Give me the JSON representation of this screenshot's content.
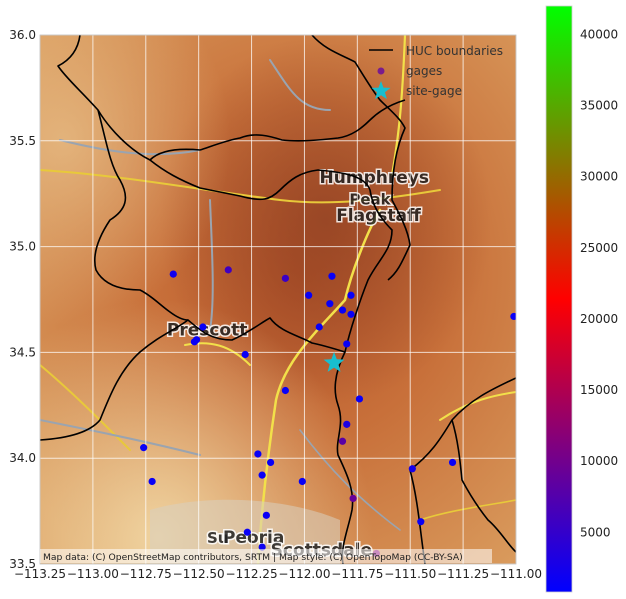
{
  "map": {
    "xlim": [
      -113.25,
      -111.0
    ],
    "ylim": [
      33.5,
      36.0
    ],
    "x_ticks": [
      "−113.25",
      "−113.00",
      "−112.75",
      "−112.50",
      "−112.25",
      "−112.00",
      "−111.75",
      "−111.50",
      "−111.25",
      "−111.00"
    ],
    "x_tick_values": [
      -113.25,
      -113.0,
      -112.75,
      -112.5,
      -112.25,
      -112.0,
      -111.75,
      -111.5,
      -111.25,
      -111.0
    ],
    "y_ticks": [
      "33.5",
      "34.0",
      "34.5",
      "35.0",
      "35.5",
      "36.0"
    ],
    "y_tick_values": [
      33.5,
      34.0,
      34.5,
      35.0,
      35.5,
      36.0
    ],
    "grid": true,
    "basemap_attribution": "Map data: (C) OpenStreetMap contributors, SRTM | Map style: (C) OpenTopoMap (CC-BY-SA)",
    "place_labels": [
      {
        "text": "Humphreys",
        "lon": -111.67,
        "lat": 35.3
      },
      {
        "text": "Peak",
        "lon": -111.69,
        "lat": 35.2
      },
      {
        "text": "Flagstaff",
        "lon": -111.65,
        "lat": 35.12
      },
      {
        "text": "Prescott",
        "lon": -112.46,
        "lat": 34.58
      },
      {
        "text": "Su",
        "lon": -112.41,
        "lat": 33.6
      },
      {
        "text": "Peoria",
        "lon": -112.24,
        "lat": 33.6
      },
      {
        "text": "Scottsdale",
        "lon": -111.92,
        "lat": 33.54
      }
    ]
  },
  "legend": {
    "placement": "top-right",
    "items": [
      {
        "label": "HUC boundaries",
        "symbol": "line",
        "color": "#000000"
      },
      {
        "label": "gages",
        "symbol": "dot",
        "color": "#7a1c8c"
      },
      {
        "label": "site-gage",
        "symbol": "star",
        "color": "#17becf"
      }
    ]
  },
  "colorbar": {
    "range": [
      800,
      42000
    ],
    "ticks": [
      "5000",
      "10000",
      "15000",
      "20000",
      "25000",
      "30000",
      "35000",
      "40000"
    ],
    "tick_values": [
      5000,
      10000,
      15000,
      20000,
      25000,
      30000,
      35000,
      40000
    ],
    "colors": [
      "#0000ff",
      "#ff0000",
      "#00ff00"
    ]
  },
  "chart_data": {
    "type": "scatter",
    "series": [
      {
        "name": "gages",
        "points": [
          {
            "x": -112.62,
            "y": 34.87,
            "v": 2000
          },
          {
            "x": -112.36,
            "y": 34.89,
            "v": 6000
          },
          {
            "x": -112.09,
            "y": 34.85,
            "v": 5500
          },
          {
            "x": -111.87,
            "y": 34.86,
            "v": 1500
          },
          {
            "x": -111.98,
            "y": 34.77,
            "v": 1500
          },
          {
            "x": -111.88,
            "y": 34.73,
            "v": 1500
          },
          {
            "x": -111.82,
            "y": 34.7,
            "v": 1500
          },
          {
            "x": -111.78,
            "y": 34.77,
            "v": 1500
          },
          {
            "x": -111.78,
            "y": 34.68,
            "v": 1500
          },
          {
            "x": -112.48,
            "y": 34.62,
            "v": 1500
          },
          {
            "x": -112.51,
            "y": 34.56,
            "v": 1500
          },
          {
            "x": -112.52,
            "y": 34.55,
            "v": 1500
          },
          {
            "x": -111.93,
            "y": 34.62,
            "v": 1500
          },
          {
            "x": -111.8,
            "y": 34.54,
            "v": 1500
          },
          {
            "x": -112.28,
            "y": 34.49,
            "v": 1500
          },
          {
            "x": -111.01,
            "y": 34.67,
            "v": 1500
          },
          {
            "x": -112.09,
            "y": 34.32,
            "v": 1500
          },
          {
            "x": -111.74,
            "y": 34.28,
            "v": 1500
          },
          {
            "x": -111.8,
            "y": 34.16,
            "v": 3000
          },
          {
            "x": -111.82,
            "y": 34.08,
            "v": 8000
          },
          {
            "x": -112.76,
            "y": 34.05,
            "v": 1500
          },
          {
            "x": -112.22,
            "y": 34.02,
            "v": 1500
          },
          {
            "x": -112.16,
            "y": 33.98,
            "v": 1500
          },
          {
            "x": -112.2,
            "y": 33.92,
            "v": 1500
          },
          {
            "x": -112.72,
            "y": 33.89,
            "v": 1500
          },
          {
            "x": -112.01,
            "y": 33.89,
            "v": 1500
          },
          {
            "x": -111.49,
            "y": 33.95,
            "v": 2500
          },
          {
            "x": -111.3,
            "y": 33.98,
            "v": 1500
          },
          {
            "x": -111.77,
            "y": 33.81,
            "v": 9000
          },
          {
            "x": -112.18,
            "y": 33.73,
            "v": 1500
          },
          {
            "x": -111.45,
            "y": 33.7,
            "v": 1500
          },
          {
            "x": -112.27,
            "y": 33.65,
            "v": 1500
          },
          {
            "x": -112.2,
            "y": 33.58,
            "v": 2000
          },
          {
            "x": -111.66,
            "y": 33.55,
            "v": 12000
          }
        ]
      },
      {
        "name": "site-gage",
        "points": [
          {
            "x": -111.86,
            "y": 34.45
          }
        ]
      }
    ]
  }
}
